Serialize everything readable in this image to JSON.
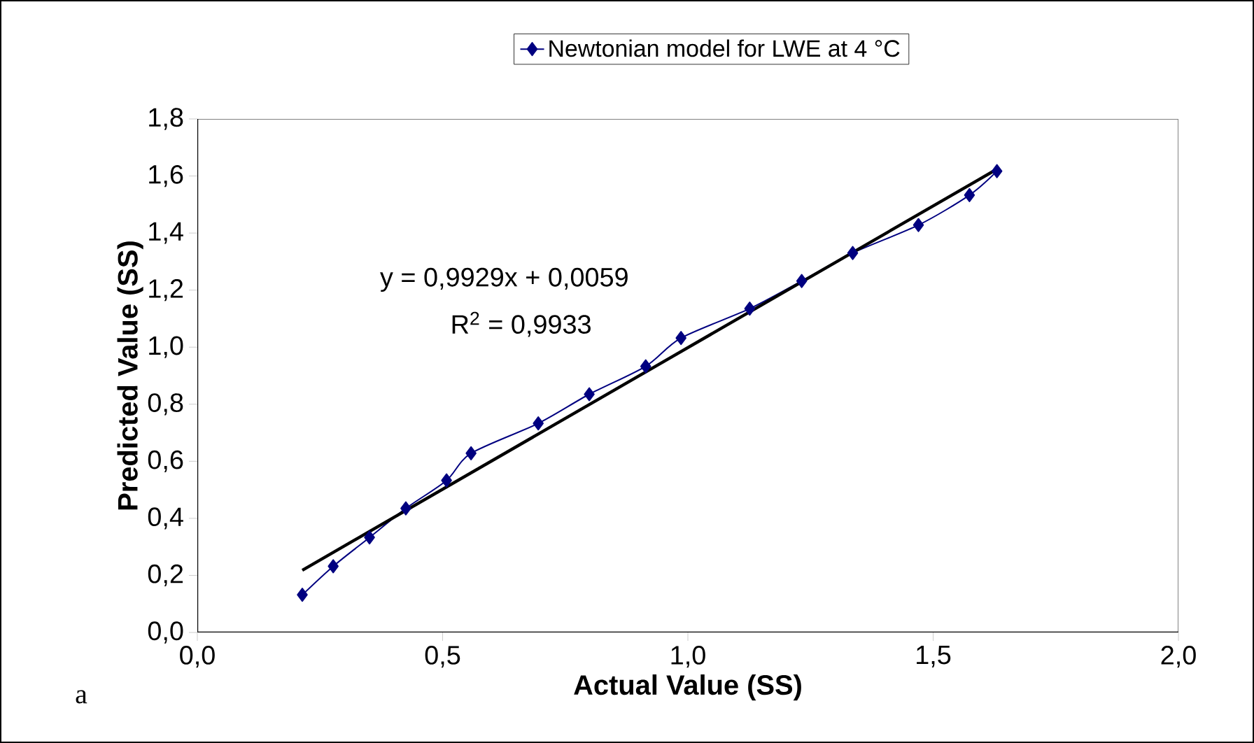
{
  "chart_data": {
    "type": "line",
    "xlabel": "Actual Value (SS)",
    "ylabel": "Predicted Value (SS)",
    "xlim": [
      0,
      2
    ],
    "ylim": [
      0,
      1.8
    ],
    "xticks": [
      {
        "value": 0,
        "label": "0,0"
      },
      {
        "value": 0.5,
        "label": "0,5"
      },
      {
        "value": 1,
        "label": "1,0"
      },
      {
        "value": 1.5,
        "label": "1,5"
      },
      {
        "value": 2,
        "label": "2,0"
      }
    ],
    "yticks": [
      {
        "value": 0,
        "label": "0,0"
      },
      {
        "value": 0.2,
        "label": "0,2"
      },
      {
        "value": 0.4,
        "label": "0,4"
      },
      {
        "value": 0.6,
        "label": "0,6"
      },
      {
        "value": 0.8,
        "label": "0,8"
      },
      {
        "value": 1,
        "label": "1,0"
      },
      {
        "value": 1.2,
        "label": "1,2"
      },
      {
        "value": 1.4,
        "label": "1,4"
      },
      {
        "value": 1.6,
        "label": "1,6"
      },
      {
        "value": 1.8,
        "label": "1,8"
      }
    ],
    "series": [
      {
        "name": "Newtonian model for LWE at 4 °C",
        "color": "#000080",
        "marker": "diamond",
        "x": [
          0.214,
          0.277,
          0.351,
          0.425,
          0.508,
          0.558,
          0.695,
          0.799,
          0.914,
          0.986,
          1.126,
          1.232,
          1.336,
          1.47,
          1.574,
          1.63
        ],
        "values": [
          0.132,
          0.232,
          0.333,
          0.435,
          0.533,
          0.628,
          0.733,
          0.835,
          0.933,
          1.032,
          1.135,
          1.232,
          1.33,
          1.428,
          1.533,
          1.617
        ]
      },
      {
        "type": "line",
        "color": "#000000",
        "x": [
          0.214,
          1.63
        ],
        "values": [
          0.218,
          1.624
        ]
      }
    ],
    "legend": "top",
    "annotations": [
      "y = 0,9929x + 0,0059",
      "R$^{2}$ = 0,9933",
      "a"
    ]
  }
}
